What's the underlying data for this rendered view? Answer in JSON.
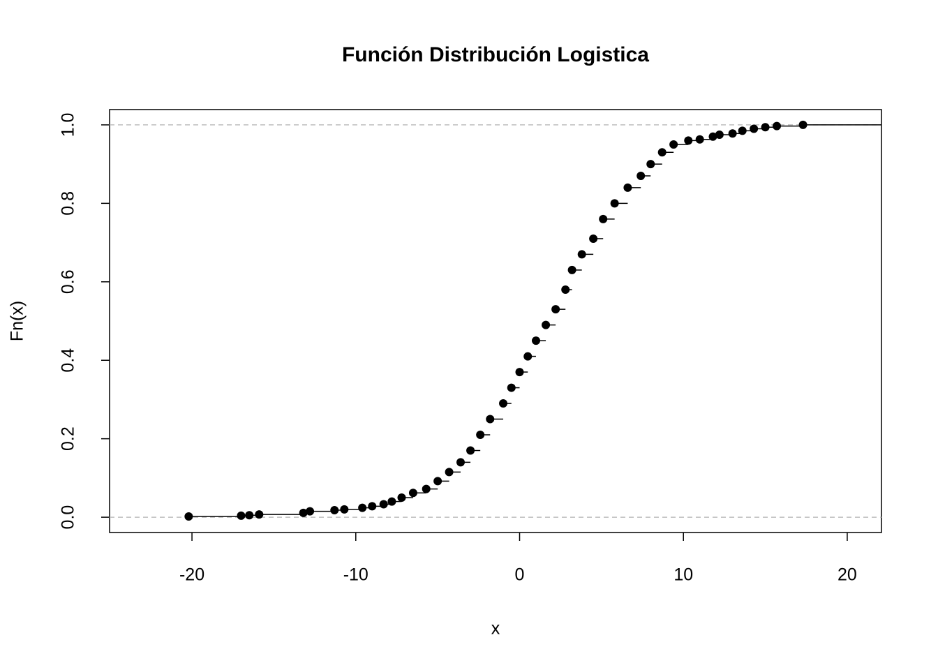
{
  "chart_data": {
    "type": "ecdf",
    "title": "Función Distribución Logistica",
    "x_label": "x",
    "y_label": "Fn(x)",
    "x": [
      -20.2,
      -17,
      -16.5,
      -15.9,
      -13.2,
      -12.8,
      -11.3,
      -10.7,
      -9.6,
      -9,
      -8.3,
      -7.8,
      -7.2,
      -6.5,
      -5.7,
      -5,
      -4.3,
      -3.6,
      -3,
      -2.4,
      -1.8,
      -1,
      -0.5,
      0,
      0.5,
      1,
      1.6,
      2.2,
      2.8,
      3.2,
      3.8,
      4.5,
      5.1,
      5.8,
      6.6,
      7.4,
      8,
      8.7,
      9.4,
      10.3,
      11,
      11.8,
      12.2,
      13,
      13.6,
      14.3,
      15,
      15.7,
      17.3
    ],
    "values": [
      0.002,
      0.004,
      0.005,
      0.007,
      0.011,
      0.015,
      0.018,
      0.02,
      0.024,
      0.028,
      0.033,
      0.04,
      0.05,
      0.062,
      0.072,
      0.092,
      0.115,
      0.14,
      0.17,
      0.21,
      0.25,
      0.29,
      0.33,
      0.37,
      0.41,
      0.45,
      0.49,
      0.53,
      0.58,
      0.63,
      0.67,
      0.71,
      0.76,
      0.8,
      0.84,
      0.87,
      0.9,
      0.93,
      0.95,
      0.96,
      0.963,
      0.97,
      0.975,
      0.978,
      0.985,
      0.99,
      0.994,
      0.997,
      1.0
    ],
    "color": "#000000",
    "xlim": [
      -25.03,
      22.09
    ],
    "xticks": [
      -20,
      -10,
      0,
      10,
      20
    ],
    "ylim": [
      -0.039,
      1.039
    ],
    "yticks": [
      {
        "value": 0,
        "label": "0.0"
      },
      {
        "value": 0.2,
        "label": "0.2"
      },
      {
        "value": 0.4,
        "label": "0.4"
      },
      {
        "value": 0.6,
        "label": "0.6"
      },
      {
        "value": 0.8,
        "label": "0.8"
      },
      {
        "value": 1,
        "label": "1.0"
      }
    ],
    "hlines": [
      0,
      1
    ],
    "hline_color": "#bebebe"
  }
}
